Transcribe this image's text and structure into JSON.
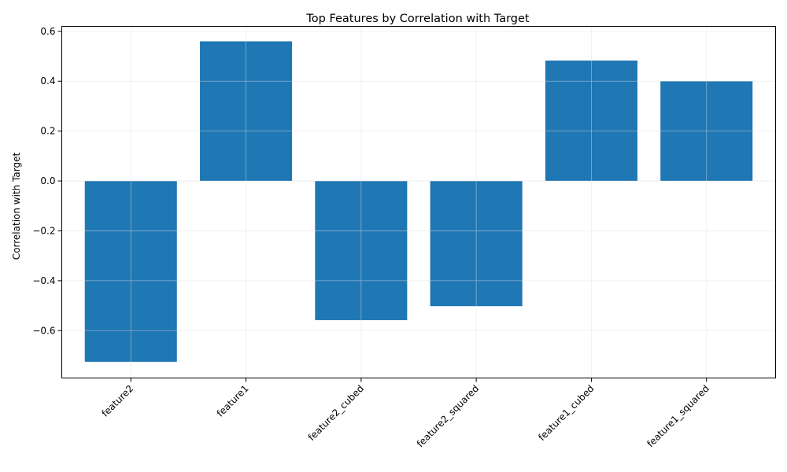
{
  "chart_data": {
    "type": "bar",
    "title": "Top Features by Correlation with Target",
    "xlabel": "",
    "ylabel": "Correlation with Target",
    "categories": [
      "feature2",
      "feature1",
      "feature2_cubed",
      "feature2_squared",
      "feature1_cubed",
      "feature1_squared"
    ],
    "values": [
      -0.725,
      0.56,
      -0.558,
      -0.502,
      0.483,
      0.4
    ],
    "ylim": [
      -0.79,
      0.62
    ],
    "yticks": [
      -0.6,
      -0.4,
      -0.2,
      0.0,
      0.2,
      0.4,
      0.6
    ],
    "ytick_labels": [
      "−0.6",
      "−0.4",
      "−0.2",
      "0.0",
      "0.2",
      "0.4",
      "0.6"
    ],
    "grid": true,
    "bar_color": "#1f77b4",
    "grid_color": "#e0e0e0"
  }
}
